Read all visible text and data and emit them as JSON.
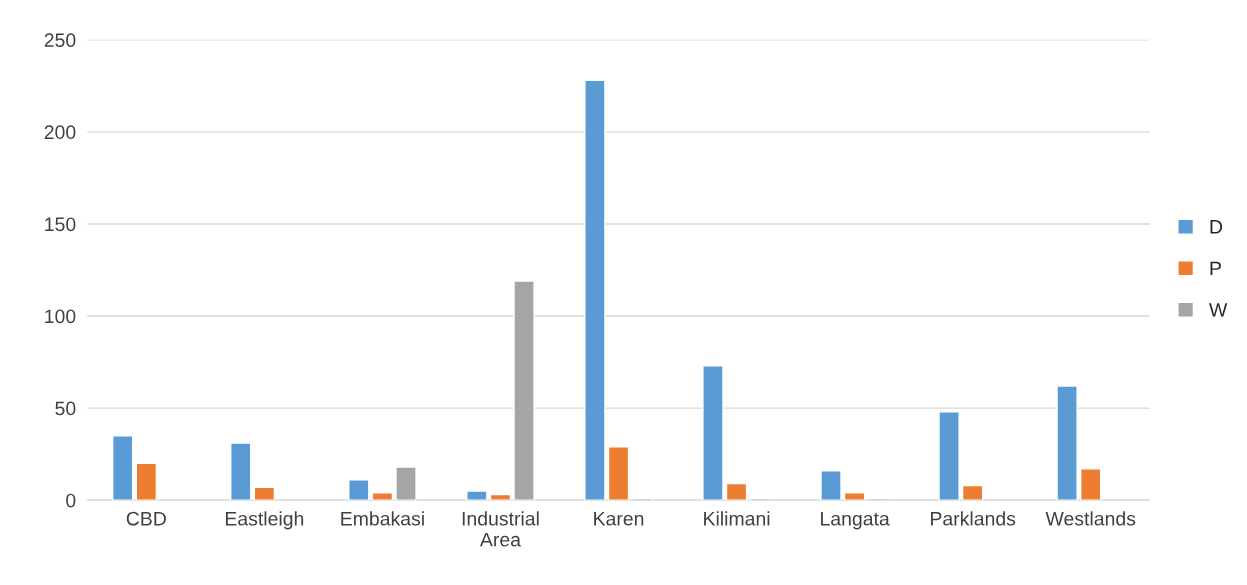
{
  "chart_data": {
    "type": "bar",
    "categories": [
      "CBD",
      "Eastleigh",
      "Embakasi",
      "Industrial\nArea",
      "Karen",
      "Kilimani",
      "Langata",
      "Parklands",
      "Westlands"
    ],
    "series": [
      {
        "name": "D",
        "color": "#5b9bd5",
        "values": [
          35,
          31,
          11,
          5,
          228,
          73,
          16,
          48,
          62
        ]
      },
      {
        "name": "P",
        "color": "#ed7d31",
        "values": [
          20,
          7,
          4,
          3,
          29,
          9,
          4,
          8,
          17
        ]
      },
      {
        "name": "W",
        "color": "#a5a5a5",
        "values": [
          null,
          null,
          18,
          119,
          1,
          1,
          1,
          null,
          null
        ]
      }
    ],
    "ylim": [
      0,
      250
    ],
    "yticks": [
      0,
      50,
      100,
      150,
      200,
      250
    ],
    "grid": "y",
    "legend": "right"
  }
}
